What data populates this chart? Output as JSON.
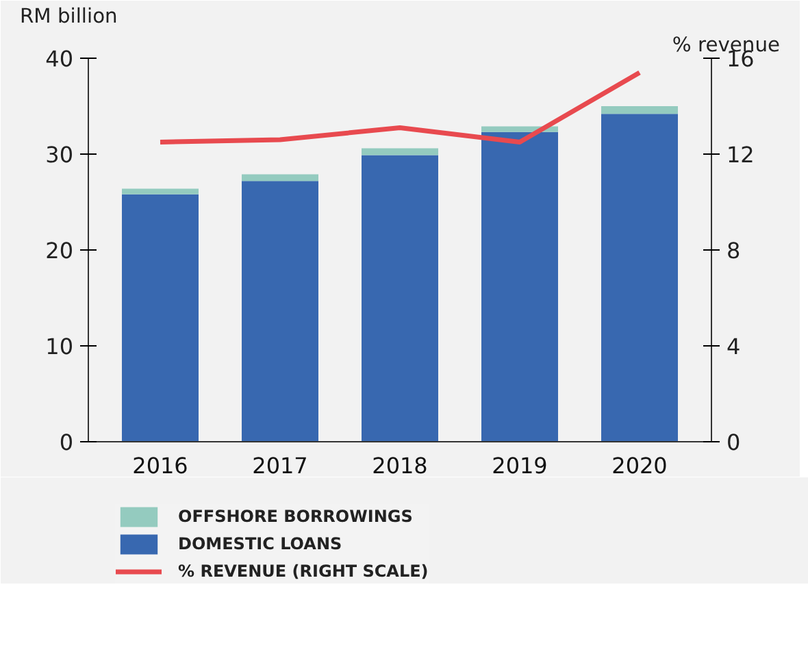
{
  "chart_data": {
    "type": "bar",
    "stacked": true,
    "ylabel": "RM billion",
    "y2label": "% revenue",
    "categories": [
      "2016",
      "2017",
      "2018",
      "2019",
      "2020"
    ],
    "series": [
      {
        "name": "DOMESTIC LOANS",
        "color": "#3868b0",
        "values": [
          25.8,
          27.2,
          29.9,
          32.3,
          34.2
        ]
      },
      {
        "name": "OFFSHORE BORROWINGS",
        "color": "#94cbbf",
        "values": [
          0.6,
          0.7,
          0.7,
          0.6,
          0.8
        ]
      },
      {
        "name": "% REVENUE (RIGHT SCALE)",
        "type": "line",
        "axis": "y2",
        "color": "#e84a4f",
        "values": [
          12.5,
          12.6,
          13.1,
          12.5,
          15.4
        ]
      }
    ],
    "ylim": [
      0,
      40
    ],
    "yticks": [
      0,
      10,
      20,
      30,
      40
    ],
    "y2lim": [
      0,
      16
    ],
    "y2ticks": [
      0,
      4,
      8,
      12,
      16
    ],
    "grid": false,
    "legend": "bottom"
  }
}
